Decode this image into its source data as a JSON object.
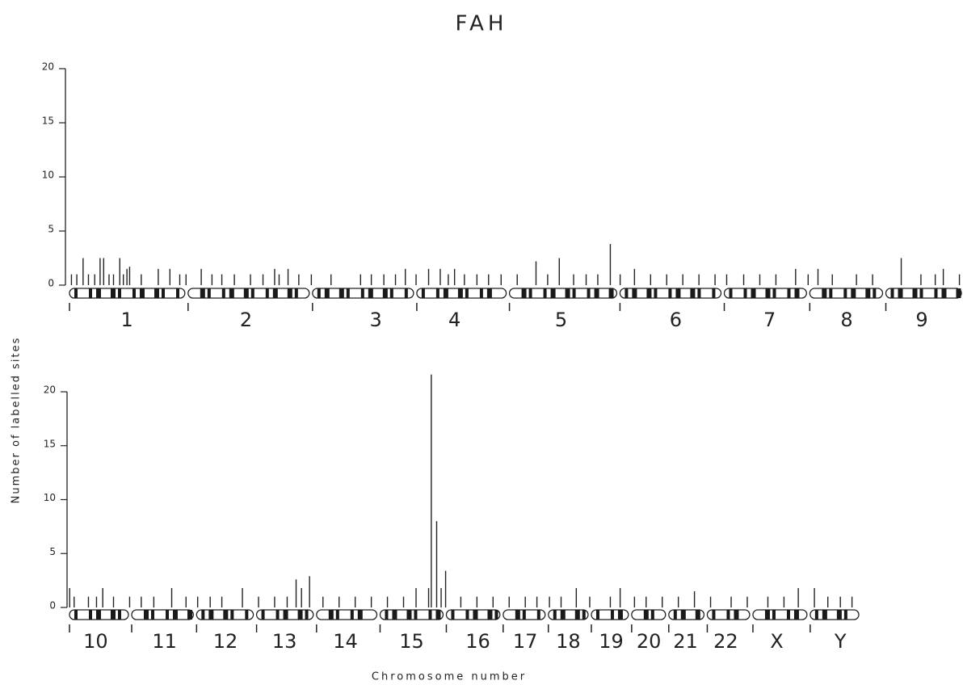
{
  "chart_data": [
    {
      "type": "bar",
      "title": "FAH",
      "y_label": "Number of labelled sites",
      "xlim": [
        0,
        100
      ],
      "ylim": [
        0,
        20
      ],
      "yticks": [
        0,
        5,
        10,
        15,
        20
      ],
      "xticks": [
        {
          "value": 6.6,
          "label": "1"
        },
        {
          "value": 19.9,
          "label": "2"
        },
        {
          "value": 34.4,
          "label": "3"
        },
        {
          "value": 43.2,
          "label": "4"
        },
        {
          "value": 55.1,
          "label": "5"
        },
        {
          "value": 67.9,
          "label": "6"
        },
        {
          "value": 78.4,
          "label": "7"
        },
        {
          "value": 87.0,
          "label": "8"
        },
        {
          "value": 95.4,
          "label": "9"
        }
      ],
      "x": [
        0.4,
        1.0,
        1.7,
        2.3,
        3.0,
        3.6,
        4.0,
        4.6,
        5.1,
        5.8,
        6.2,
        6.6,
        6.9,
        8.2,
        10.1,
        11.4,
        12.5,
        13.2,
        14.9,
        16.1,
        17.2,
        18.6,
        20.4,
        21.8,
        23.1,
        23.6,
        24.6,
        25.8,
        27.2,
        29.4,
        32.7,
        33.9,
        35.3,
        36.6,
        37.7,
        38.9,
        40.3,
        41.6,
        42.5,
        43.2,
        44.3,
        45.7,
        47.0,
        48.4,
        50.2,
        52.3,
        53.6,
        54.9,
        56.5,
        57.9,
        59.2,
        60.6,
        61.7,
        63.3,
        65.1,
        66.9,
        68.7,
        70.5,
        72.3,
        73.6,
        75.5,
        77.3,
        79.1,
        81.3,
        82.7,
        83.8,
        85.4,
        88.1,
        89.9,
        93.1,
        95.3,
        96.9,
        97.8,
        99.6
      ],
      "values": [
        1,
        1,
        2.5,
        1,
        1,
        2.5,
        2.5,
        1,
        1,
        2.5,
        1,
        1.5,
        1.7,
        1,
        1.5,
        1.5,
        1,
        1,
        1.5,
        1,
        1,
        1,
        1,
        1,
        1.5,
        1,
        1.5,
        1,
        1,
        1,
        1,
        1,
        1,
        1,
        1.5,
        1,
        1.5,
        1.5,
        1,
        1.5,
        1,
        1,
        1,
        1,
        1,
        2.2,
        1,
        2.5,
        1,
        1,
        1,
        3.8,
        1,
        1.5,
        1,
        1,
        1,
        1,
        1,
        1,
        1,
        1,
        1,
        1.5,
        1,
        1.5,
        1,
        1,
        1,
        2.5,
        1,
        1,
        1.5,
        1
      ],
      "color": "#222222"
    },
    {
      "type": "bar",
      "x_label": "Chromosome number",
      "xlim": [
        0,
        100
      ],
      "ylim": [
        0,
        20
      ],
      "yticks": [
        0,
        5,
        10,
        15,
        20
      ],
      "xticks": [
        {
          "value": 3.1,
          "label": "10"
        },
        {
          "value": 10.8,
          "label": "11"
        },
        {
          "value": 17.6,
          "label": "12"
        },
        {
          "value": 24.2,
          "label": "13"
        },
        {
          "value": 31.0,
          "label": "14"
        },
        {
          "value": 38.4,
          "label": "15"
        },
        {
          "value": 45.8,
          "label": "16"
        },
        {
          "value": 51.1,
          "label": "17"
        },
        {
          "value": 55.9,
          "label": "18"
        },
        {
          "value": 60.7,
          "label": "19"
        },
        {
          "value": 64.9,
          "label": "20"
        },
        {
          "value": 69.0,
          "label": "21"
        },
        {
          "value": 73.5,
          "label": "22"
        },
        {
          "value": 79.2,
          "label": "X"
        },
        {
          "value": 86.3,
          "label": "Y"
        }
      ],
      "x": [
        0.2,
        0.7,
        2.3,
        3.2,
        3.9,
        5.1,
        6.9,
        8.2,
        9.6,
        11.6,
        13.2,
        14.5,
        15.9,
        17.2,
        19.5,
        21.3,
        23.1,
        24.5,
        25.5,
        26.1,
        27.0,
        28.5,
        30.3,
        32.1,
        33.9,
        35.7,
        37.5,
        38.9,
        40.3,
        40.6,
        41.2,
        41.7,
        42.2,
        43.9,
        45.7,
        47.5,
        49.3,
        51.1,
        52.4,
        53.8,
        55.1,
        56.8,
        58.3,
        60.6,
        61.7,
        63.3,
        64.6,
        66.4,
        68.2,
        70.0,
        71.8,
        74.1,
        75.9,
        78.2,
        80.0,
        81.6,
        83.4,
        84.9,
        86.3,
        87.6
      ],
      "values": [
        1.8,
        1,
        1,
        1,
        1.8,
        1,
        1,
        1,
        1,
        1.8,
        1,
        1,
        1,
        1,
        1.8,
        1,
        1,
        1,
        2.6,
        1.8,
        2.9,
        1,
        1,
        1,
        1,
        1,
        1,
        1.8,
        1.8,
        21.6,
        8,
        1.8,
        3.4,
        1,
        1,
        1,
        1,
        1,
        1,
        1,
        1,
        1.8,
        1,
        1,
        1.8,
        1,
        1,
        1,
        1,
        1.5,
        1,
        1,
        1,
        1,
        1,
        1.8,
        1.8,
        1,
        1,
        1
      ],
      "color": "#222222"
    }
  ]
}
